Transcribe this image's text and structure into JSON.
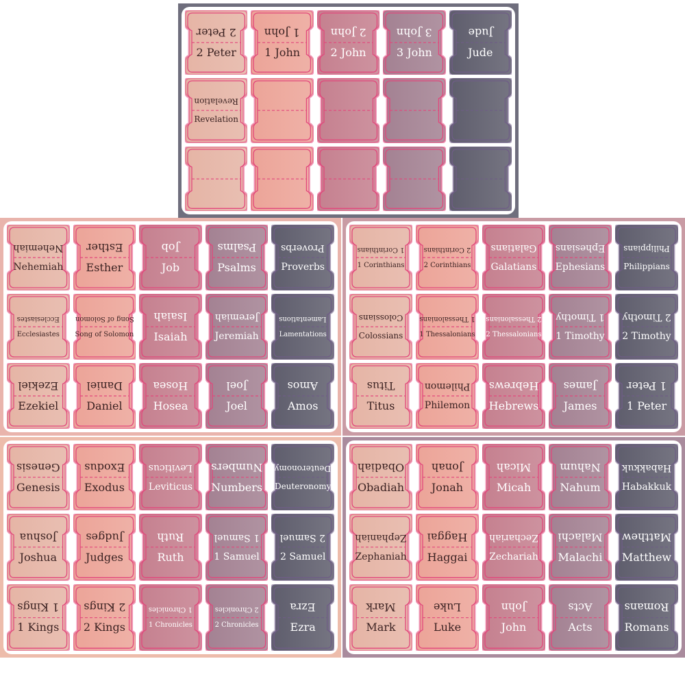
{
  "palette": {
    "columns": [
      "#e5b4a5",
      "#eca498",
      "#c5808f",
      "#a38192",
      "#5e5d6c"
    ],
    "text_dark": "#3b2222",
    "text_light": "#ffffff",
    "border_pink": "#e2477c",
    "border_slate": "#6f5d86"
  },
  "sheets": [
    {
      "name": "sheet-top",
      "background": "#6f6e7d",
      "tabs": [
        [
          "2 Peter",
          "1 John",
          "2 John",
          "3 John",
          "Jude"
        ],
        [
          "Revelation",
          "",
          "",
          "",
          ""
        ],
        [
          "",
          "",
          "",
          "",
          ""
        ]
      ]
    },
    {
      "name": "sheet-middle-left",
      "background": "#e9b4ac",
      "tabs": [
        [
          "Nehemiah",
          "Esther",
          "Job",
          "Psalms",
          "Proverbs"
        ],
        [
          "Ecclesiastes",
          "Song of Solomon",
          "Isaiah",
          "Jeremiah",
          "Lamentations"
        ],
        [
          "Ezekiel",
          "Daniel",
          "Hosea",
          "Joel",
          "Amos"
        ]
      ]
    },
    {
      "name": "sheet-middle-right",
      "background": "#c99ba4",
      "tabs": [
        [
          "1 Corinthians",
          "2 Corinthians",
          "Galatians",
          "Ephesians",
          "Philippians"
        ],
        [
          "Colossians",
          "1 Thessalonians",
          "2 Thessalonians",
          "1 Timothy",
          "2 Timothy"
        ],
        [
          "Titus",
          "Philemon",
          "Hebrews",
          "James",
          "1 Peter"
        ]
      ]
    },
    {
      "name": "sheet-bottom-left",
      "background": "#edbcab",
      "tabs": [
        [
          "Genesis",
          "Exodus",
          "Leviticus",
          "Numbers",
          "Deuteronomy"
        ],
        [
          "Joshua",
          "Judges",
          "Ruth",
          "1 Samuel",
          "2 Samuel"
        ],
        [
          "1 Kings",
          "2 Kings",
          "1 Chronicles",
          "2 Chronicles",
          "Ezra"
        ]
      ]
    },
    {
      "name": "sheet-bottom-right",
      "background": "#a98b9d",
      "tabs": [
        [
          "Obadiah",
          "Jonah",
          "Micah",
          "Nahum",
          "Habakkuk"
        ],
        [
          "Zephaniah",
          "Haggai",
          "Zechariah",
          "Malachi",
          "Matthew"
        ],
        [
          "Mark",
          "Luke",
          "John",
          "Acts",
          "Romans"
        ]
      ]
    }
  ]
}
